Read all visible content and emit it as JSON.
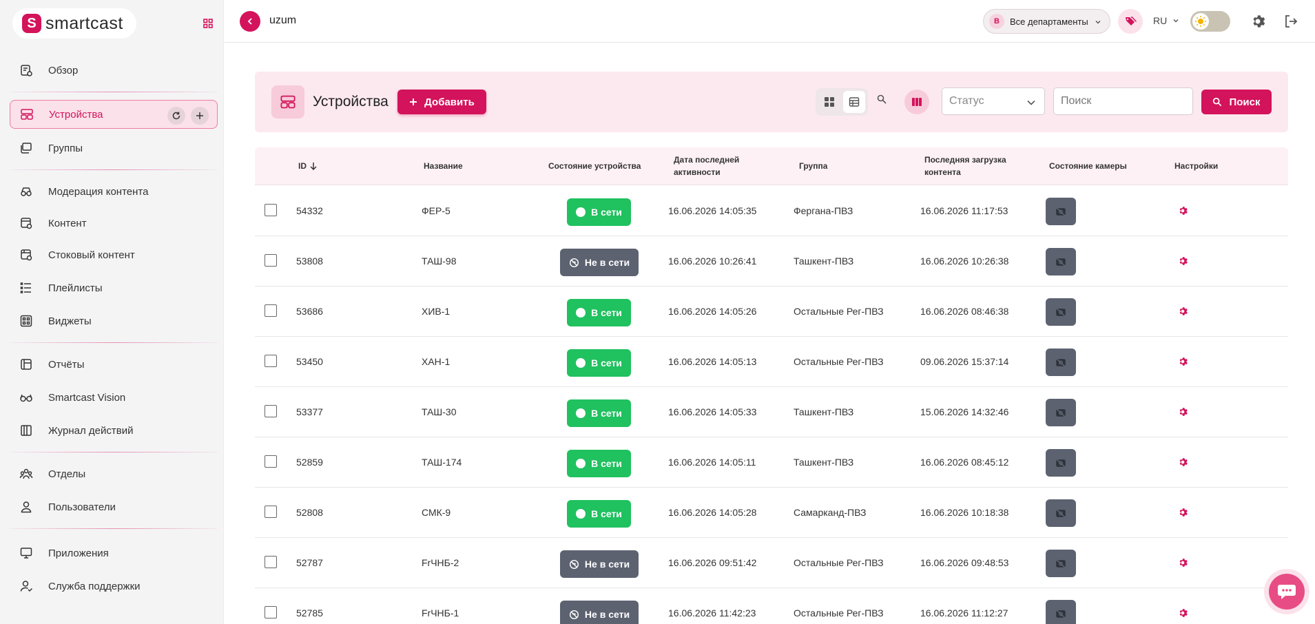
{
  "brand": {
    "name": "smartcast"
  },
  "sidebar": {
    "items": [
      {
        "label": "Обзор",
        "icon": "overview-icon"
      },
      {
        "label": "Устройства",
        "icon": "devices-icon",
        "active": true
      },
      {
        "label": "Группы",
        "icon": "groups-icon"
      },
      {
        "label": "Модерация контента",
        "icon": "moderation-icon"
      },
      {
        "label": "Контент",
        "icon": "content-icon"
      },
      {
        "label": "Стоковый контент",
        "icon": "stock-content-icon"
      },
      {
        "label": "Плейлисты",
        "icon": "playlist-icon"
      },
      {
        "label": "Виджеты",
        "icon": "widgets-icon"
      },
      {
        "label": "Отчёты",
        "icon": "reports-icon"
      },
      {
        "label": "Smartcast Vision",
        "icon": "vision-icon"
      },
      {
        "label": "Журнал действий",
        "icon": "journal-icon"
      },
      {
        "label": "Отделы",
        "icon": "departments-icon"
      },
      {
        "label": "Пользователи",
        "icon": "users-icon"
      },
      {
        "label": "Приложения",
        "icon": "apps-icon"
      },
      {
        "label": "Служба поддержки",
        "icon": "support-icon"
      }
    ]
  },
  "topbar": {
    "org": "uzum",
    "dept_badge": "В",
    "dept_label": "Все департаменты",
    "lang": "RU"
  },
  "panel": {
    "title": "Устройства",
    "add_label": "Добавить",
    "status_placeholder": "Статус",
    "search_placeholder": "Поиск",
    "search_button": "Поиск"
  },
  "table": {
    "headers": {
      "id": "ID",
      "name": "Название",
      "state": "Состояние устройства",
      "last_activity_1": "Дата последней",
      "last_activity_2": "активности",
      "group": "Группа",
      "last_load_1": "Последняя загрузка",
      "last_load_2": "контента",
      "camera": "Состояние камеры",
      "settings": "Настройки"
    },
    "status_labels": {
      "online": "В сети",
      "offline": "Не в сети"
    },
    "rows": [
      {
        "id": "54332",
        "name": "ФЕР-5",
        "status": "online",
        "activity": "16.06.2026 14:05:35",
        "group": "Фергана-ПВЗ",
        "load": "16.06.2026 11:17:53"
      },
      {
        "id": "53808",
        "name": "ТАШ-98",
        "status": "offline",
        "activity": "16.06.2026 10:26:41",
        "group": "Ташкент-ПВЗ",
        "load": "16.06.2026 10:26:38"
      },
      {
        "id": "53686",
        "name": "ХИВ-1",
        "status": "online",
        "activity": "16.06.2026 14:05:26",
        "group": "Остальные Рег-ПВЗ",
        "load": "16.06.2026 08:46:38"
      },
      {
        "id": "53450",
        "name": "ХАН-1",
        "status": "online",
        "activity": "16.06.2026 14:05:13",
        "group": "Остальные Рег-ПВЗ",
        "load": "09.06.2026 15:37:14"
      },
      {
        "id": "53377",
        "name": "ТАШ-30",
        "status": "online",
        "activity": "16.06.2026 14:05:33",
        "group": "Ташкент-ПВЗ",
        "load": "15.06.2026 14:32:46"
      },
      {
        "id": "52859",
        "name": "ТАШ-174",
        "status": "online",
        "activity": "16.06.2026 14:05:11",
        "group": "Ташкент-ПВЗ",
        "load": "16.06.2026 08:45:12"
      },
      {
        "id": "52808",
        "name": "СМК-9",
        "status": "online",
        "activity": "16.06.2026 14:05:28",
        "group": "Самарканд-ПВЗ",
        "load": "16.06.2026 10:18:38"
      },
      {
        "id": "52787",
        "name": "FrЧНБ-2",
        "status": "offline",
        "activity": "16.06.2026 09:51:42",
        "group": "Остальные Рег-ПВЗ",
        "load": "16.06.2026 09:48:53"
      },
      {
        "id": "52785",
        "name": "FrЧНБ-1",
        "status": "offline",
        "activity": "16.06.2026 11:42:23",
        "group": "Остальные Рег-ПВЗ",
        "load": "16.06.2026 11:12:27"
      }
    ]
  },
  "colors": {
    "accent": "#d3135b",
    "online": "#20c15f",
    "offline": "#5c6270"
  }
}
